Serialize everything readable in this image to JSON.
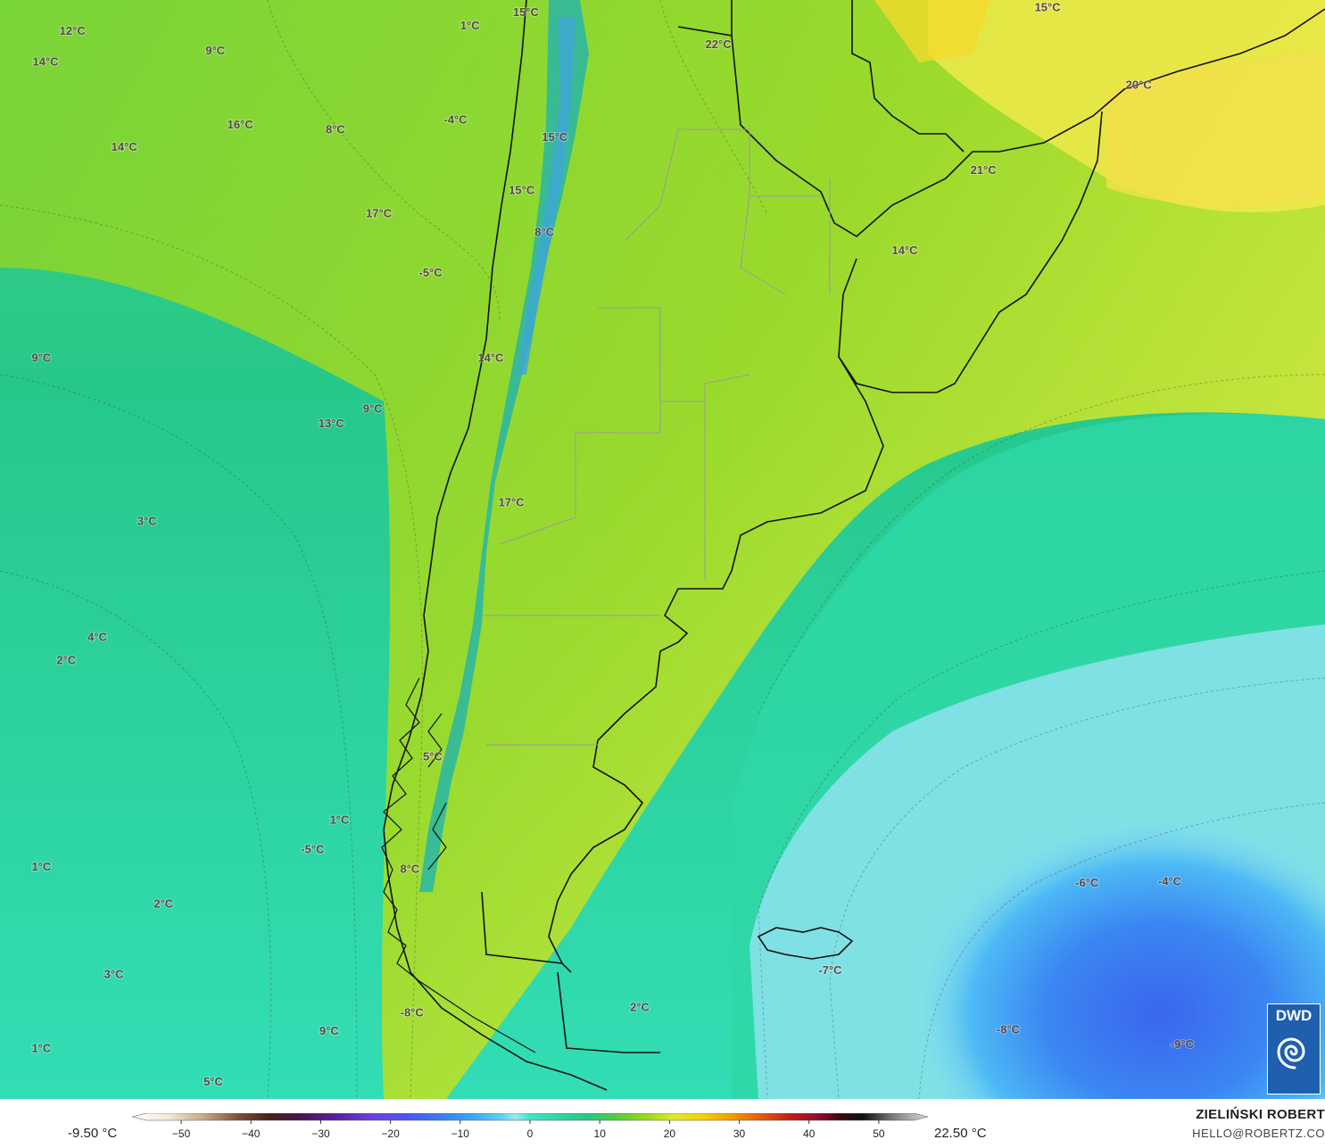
{
  "map": {
    "source_logo": "DWD",
    "labels": [
      {
        "text": "12°C",
        "lon": -88.5,
        "lat": -16.8
      },
      {
        "text": "14°C",
        "lon": -89.8,
        "lat": -19.3
      },
      {
        "text": "9°C",
        "lon": -81.6,
        "lat": -18.4
      },
      {
        "text": "16°C",
        "lon": -80.4,
        "lat": -24.4
      },
      {
        "text": "8°C",
        "lon": -75.8,
        "lat": -24.8
      },
      {
        "text": "14°C",
        "lon": -86.0,
        "lat": -26.2
      },
      {
        "text": "17°C",
        "lon": -73.7,
        "lat": -31.6
      },
      {
        "text": "1°C",
        "lon": -69.3,
        "lat": -16.4
      },
      {
        "text": "15°C",
        "lon": -66.6,
        "lat": -15.3
      },
      {
        "text": "-4°C",
        "lon": -70.0,
        "lat": -24.0
      },
      {
        "text": "15°C",
        "lon": -65.2,
        "lat": -25.4
      },
      {
        "text": "15°C",
        "lon": -66.8,
        "lat": -29.7
      },
      {
        "text": "8°C",
        "lon": -65.7,
        "lat": -33.1
      },
      {
        "text": "-5°C",
        "lon": -71.2,
        "lat": -36.4
      },
      {
        "text": "22°C",
        "lon": -57.3,
        "lat": -17.9
      },
      {
        "text": "15°C",
        "lon": -41.4,
        "lat": -14.9
      },
      {
        "text": "20°C",
        "lon": -37.0,
        "lat": -21.2
      },
      {
        "text": "21°C",
        "lon": -44.5,
        "lat": -28.1
      },
      {
        "text": "14°C",
        "lon": -48.3,
        "lat": -34.6
      },
      {
        "text": "9°C",
        "lon": -90.0,
        "lat": -43.3
      },
      {
        "text": "14°C",
        "lon": -68.3,
        "lat": -43.3
      },
      {
        "text": "9°C",
        "lon": -74.0,
        "lat": -47.4
      },
      {
        "text": "13°C",
        "lon": -76.0,
        "lat": -48.6
      },
      {
        "text": "3°C",
        "lon": -84.9,
        "lat": -56.5
      },
      {
        "text": "17°C",
        "lon": -67.3,
        "lat": -55.0
      },
      {
        "text": "4°C",
        "lon": -87.3,
        "lat": -65.9
      },
      {
        "text": "2°C",
        "lon": -88.8,
        "lat": -67.8
      },
      {
        "text": "5°C",
        "lon": -71.1,
        "lat": -75.6
      },
      {
        "text": "1°C",
        "lon": -75.6,
        "lat": -80.7
      },
      {
        "text": "-5°C",
        "lon": -76.9,
        "lat": -83.1
      },
      {
        "text": "8°C",
        "lon": -72.2,
        "lat": -84.7
      },
      {
        "text": "1°C",
        "lon": -90.0,
        "lat": -84.5
      },
      {
        "text": "2°C",
        "lon": -84.1,
        "lat": -87.5
      },
      {
        "text": "3°C",
        "lon": -86.5,
        "lat": -93.2
      },
      {
        "text": "-6°C",
        "lon": -39.5,
        "lat": -85.8
      },
      {
        "text": "-4°C",
        "lon": -35.5,
        "lat": -85.7
      },
      {
        "text": "-7°C",
        "lon": -51.9,
        "lat": -92.9
      },
      {
        "text": "9°C",
        "lon": -76.1,
        "lat": -97.8
      },
      {
        "text": "-8°C",
        "lon": -43.3,
        "lat": -97.7
      },
      {
        "text": "-9°C",
        "lon": -34.9,
        "lat": -98.9
      },
      {
        "text": "-8°C",
        "lon": -72.1,
        "lat": -96.3
      },
      {
        "text": "2°C",
        "lon": -61.1,
        "lat": -95.9
      },
      {
        "text": "1°C",
        "lon": -90.0,
        "lat": -99.2
      },
      {
        "text": "5°C",
        "lon": -81.7,
        "lat": -101.9
      }
    ]
  },
  "legend": {
    "min_label": "-9.50 °C",
    "max_label": "22.50 °C",
    "ticks": [
      "−50",
      "−40",
      "−30",
      "−20",
      "−10",
      "0",
      "10",
      "20",
      "30",
      "40",
      "50"
    ],
    "tick_values": [
      -50,
      -40,
      -30,
      -20,
      -10,
      0,
      10,
      20,
      30,
      40,
      50
    ],
    "range": [
      -55,
      55
    ],
    "stops": [
      {
        "v": -55,
        "c": "#ffffff"
      },
      {
        "v": -50,
        "c": "#f2ead8"
      },
      {
        "v": -45,
        "c": "#c9a584"
      },
      {
        "v": -40,
        "c": "#7a4b33"
      },
      {
        "v": -36,
        "c": "#4b1d1a"
      },
      {
        "v": -32,
        "c": "#4a1250"
      },
      {
        "v": -27,
        "c": "#5a1e9a"
      },
      {
        "v": -22,
        "c": "#6e3fe0"
      },
      {
        "v": -17,
        "c": "#4a57f0"
      },
      {
        "v": -12,
        "c": "#3a7ff2"
      },
      {
        "v": -8,
        "c": "#3aa8f5"
      },
      {
        "v": -4,
        "c": "#5ed0f5"
      },
      {
        "v": -2,
        "c": "#9ae9f0"
      },
      {
        "v": 0,
        "c": "#3fe5c9"
      },
      {
        "v": 4,
        "c": "#2fd5a4"
      },
      {
        "v": 8,
        "c": "#28c683"
      },
      {
        "v": 12,
        "c": "#53cc3d"
      },
      {
        "v": 16,
        "c": "#9bd81f"
      },
      {
        "v": 20,
        "c": "#e0ea28"
      },
      {
        "v": 24,
        "c": "#f4d000"
      },
      {
        "v": 28,
        "c": "#ef9a00"
      },
      {
        "v": 32,
        "c": "#e25a0c"
      },
      {
        "v": 36,
        "c": "#c41d18"
      },
      {
        "v": 40,
        "c": "#8a0f2c"
      },
      {
        "v": 43,
        "c": "#360a0a"
      },
      {
        "v": 46,
        "c": "#111111"
      },
      {
        "v": 50,
        "c": "#777777"
      },
      {
        "v": 55,
        "c": "#dddddd"
      }
    ]
  },
  "credit": {
    "name": "ZIELIŃSKI ROBERT",
    "email": "HELLO@ROBERTZ.CO"
  }
}
